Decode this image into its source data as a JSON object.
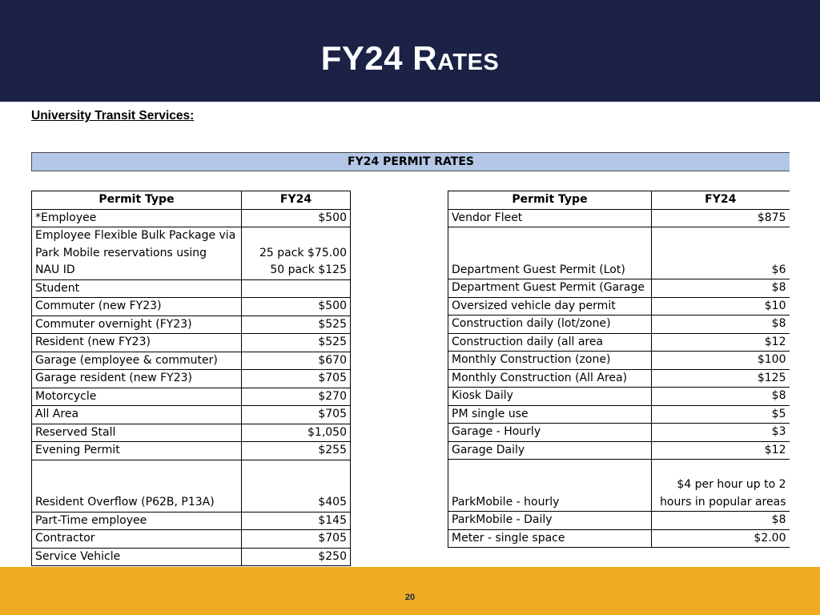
{
  "header": {
    "title": "FY24 Rates",
    "background": "#1b2246"
  },
  "subtitle": "University Transit Services:",
  "banner": {
    "label": "FY24 PERMIT RATES",
    "background": "#b4c7e7"
  },
  "left_table": {
    "headers": [
      "Permit Type",
      "FY24"
    ],
    "rows": [
      {
        "type": "*Employee",
        "rate": "$500"
      },
      {
        "type": "Employee Flexible Bulk Package via\nPark Mobile reservations using\nNAU ID",
        "rate": "25 pack $75.00\n50 pack $125"
      },
      {
        "type": "Student",
        "rate": ""
      },
      {
        "type": "Commuter (new FY23)",
        "rate": "$500"
      },
      {
        "type": "Commuter overnight (FY23)",
        "rate": "$525"
      },
      {
        "type": "Resident (new FY23)",
        "rate": "$525"
      },
      {
        "type": "Garage (employee & commuter)",
        "rate": "$670"
      },
      {
        "type": "Garage resident (new FY23)",
        "rate": "$705"
      },
      {
        "type": "Motorcycle",
        "rate": "$270"
      },
      {
        "type": "All Area",
        "rate": "$705"
      },
      {
        "type": "Reserved Stall",
        "rate": "$1,050"
      },
      {
        "type": "Evening Permit",
        "rate": "$255"
      },
      {
        "type": "Resident Overflow (P62B, P13A)",
        "rate": "$405"
      },
      {
        "type": "Part-Time employee",
        "rate": "$145"
      },
      {
        "type": "Contractor",
        "rate": "$705"
      },
      {
        "type": "Service Vehicle",
        "rate": "$250"
      }
    ]
  },
  "right_table": {
    "headers": [
      "Permit Type",
      "FY24"
    ],
    "rows": [
      {
        "type": "Vendor Fleet",
        "rate": "$875"
      },
      {
        "type": "Department Guest Permit (Lot)",
        "rate": "$6"
      },
      {
        "type": "Department Guest Permit (Garage",
        "rate": "$8"
      },
      {
        "type": "Oversized vehicle day permit",
        "rate": "$10"
      },
      {
        "type": "Construction daily (lot/zone)",
        "rate": "$8"
      },
      {
        "type": "Construction daily (all area",
        "rate": "$12"
      },
      {
        "type": "Monthly Construction (zone)",
        "rate": "$100"
      },
      {
        "type": "Monthly Construction (All Area)",
        "rate": "$125"
      },
      {
        "type": "Kiosk Daily",
        "rate": "$8"
      },
      {
        "type": "PM single use",
        "rate": "$5"
      },
      {
        "type": "Garage - Hourly",
        "rate": "$3"
      },
      {
        "type": "Garage Daily",
        "rate": "$12"
      },
      {
        "type": "ParkMobile - hourly",
        "rate": "$4 per hour up to 2\nhours in popular areas"
      },
      {
        "type": "ParkMobile - Daily",
        "rate": "$8"
      },
      {
        "type": "Meter - single space",
        "rate": "$2.00"
      }
    ]
  },
  "footer": {
    "page_number": "20",
    "background": "#efab22"
  }
}
